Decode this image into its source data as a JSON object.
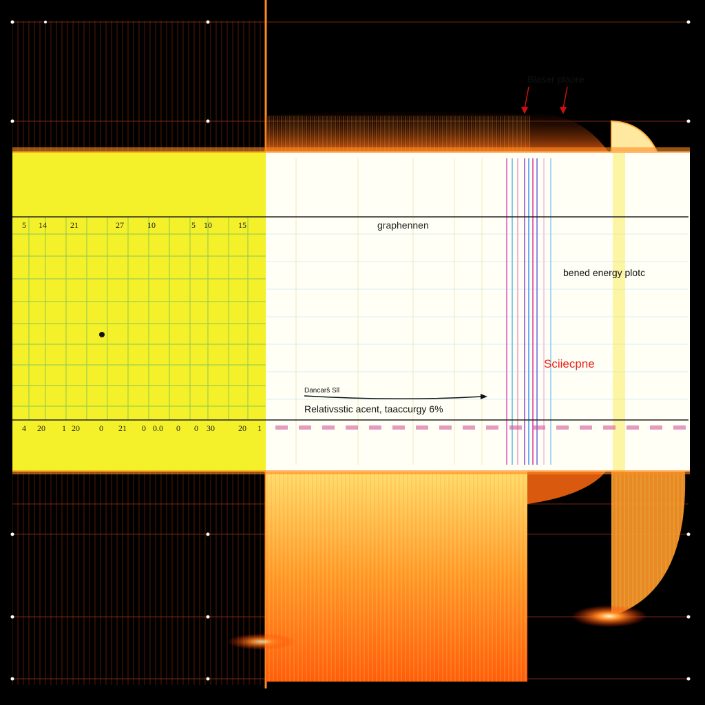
{
  "colors": {
    "background": "#000000",
    "yellow_band": "#f4f02a",
    "white_band": "#fffff6",
    "orange_glow": "#ff7a1a",
    "red_glow": "#ff2a00",
    "grid_green": "#3aa86a",
    "label_red": "#e8231c"
  },
  "chart_data": {
    "type": "bar",
    "title": "",
    "xlabel": "",
    "ylabel": "",
    "grid": true,
    "annotations": {
      "laser_plane": "Blaser plaore",
      "graph_name": "graphennen",
      "bend_energy": "bened energy plotc",
      "spectrum": "Sciiecpne",
      "band_label": "Dancarš Sll",
      "accuracy": "Relativsstic acent, taaccurgy  6%"
    },
    "top_tick_labels": [
      "5",
      "14",
      "21",
      "27",
      "10",
      "5",
      "10",
      "15"
    ],
    "bottom_tick_labels": [
      "4",
      "20",
      "1",
      "20",
      "0",
      "21",
      "0",
      "0.0",
      "0",
      "0",
      "30",
      "20",
      "1"
    ],
    "marker_point": {
      "label": "",
      "x": 2,
      "y": 0
    }
  }
}
